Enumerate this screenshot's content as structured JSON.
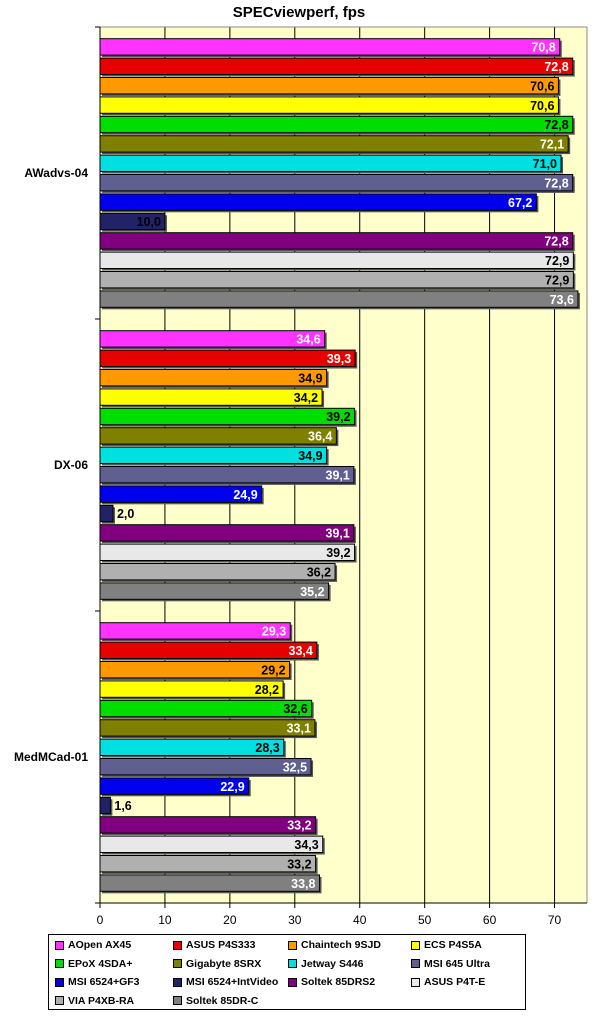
{
  "chart_data": {
    "type": "bar",
    "orientation": "horizontal",
    "title": "SPECviewperf, fps",
    "xlabel": "",
    "ylabel": "",
    "xlim": [
      0,
      75
    ],
    "xticks": [
      0,
      10,
      20,
      30,
      40,
      50,
      60,
      70
    ],
    "grid": "vertical",
    "legend_position": "bottom",
    "categories": [
      "AWadvs-04",
      "DX-06",
      "MedMCad-01"
    ],
    "series": [
      {
        "name": "AOpen AX45",
        "color": "#ff33ff",
        "label_color": "#ffffff",
        "values": [
          70.8,
          34.6,
          29.3
        ],
        "labels": [
          "70,8",
          "34,6",
          "29,3"
        ]
      },
      {
        "name": "ASUS P4S333",
        "color": "#e60000",
        "label_color": "#ffffff",
        "values": [
          72.8,
          39.3,
          33.4
        ],
        "labels": [
          "72,8",
          "39,3",
          "33,4"
        ]
      },
      {
        "name": "Chaintech 9SJD",
        "color": "#ff9900",
        "label_color": "#000000",
        "values": [
          70.6,
          34.9,
          29.2
        ],
        "labels": [
          "70,6",
          "34,9",
          "29,2"
        ]
      },
      {
        "name": "ECS P4S5A",
        "color": "#ffff00",
        "label_color": "#000000",
        "values": [
          70.6,
          34.2,
          28.2
        ],
        "labels": [
          "70,6",
          "34,2",
          "28,2"
        ]
      },
      {
        "name": "EPoX 4SDA+",
        "color": "#00dd00",
        "label_color": "#000000",
        "values": [
          72.8,
          39.2,
          32.6
        ],
        "labels": [
          "72,8",
          "39,2",
          "32,6"
        ]
      },
      {
        "name": "Gigabyte 8SRX",
        "color": "#808000",
        "label_color": "#ffffff",
        "values": [
          72.1,
          36.4,
          33.1
        ],
        "labels": [
          "72,1",
          "36,4",
          "33,1"
        ]
      },
      {
        "name": "Jetway S446",
        "color": "#00e0e0",
        "label_color": "#000000",
        "values": [
          71.0,
          34.9,
          28.3
        ],
        "labels": [
          "71,0",
          "34,9",
          "28,3"
        ]
      },
      {
        "name": "MSI 645 Ultra",
        "color": "#606090",
        "label_color": "#ffffff",
        "values": [
          72.8,
          39.1,
          32.5
        ],
        "labels": [
          "72,8",
          "39,1",
          "32,5"
        ]
      },
      {
        "name": "MSI 6524+GF3",
        "color": "#0000ee",
        "label_color": "#ffffff",
        "values": [
          67.2,
          24.9,
          22.9
        ],
        "labels": [
          "67,2",
          "24,9",
          "22,9"
        ]
      },
      {
        "name": "MSI 6524+IntVideo",
        "color": "#222266",
        "label_color": "#000000",
        "values": [
          10.0,
          2.0,
          1.6
        ],
        "labels": [
          "10,0",
          "2,0",
          "1,6"
        ]
      },
      {
        "name": "Soltek 85DRS2",
        "color": "#800080",
        "label_color": "#ffffff",
        "values": [
          72.8,
          39.1,
          33.2
        ],
        "labels": [
          "72,8",
          "39,1",
          "33,2"
        ]
      },
      {
        "name": "ASUS P4T-E",
        "color": "#e8e8e8",
        "label_color": "#000000",
        "values": [
          72.9,
          39.2,
          34.3
        ],
        "labels": [
          "72,9",
          "39,2",
          "34,3"
        ]
      },
      {
        "name": "VIA P4XB-RA",
        "color": "#b0b0b0",
        "label_color": "#000000",
        "values": [
          72.9,
          36.2,
          33.2
        ],
        "labels": [
          "72,9",
          "36,2",
          "33,2"
        ]
      },
      {
        "name": "Soltek 85DR-C",
        "color": "#808080",
        "label_color": "#ffffff",
        "values": [
          73.6,
          35.2,
          33.8
        ],
        "labels": [
          "73,6",
          "35,2",
          "33,8"
        ]
      }
    ],
    "plot_background": "#ffffcc"
  }
}
